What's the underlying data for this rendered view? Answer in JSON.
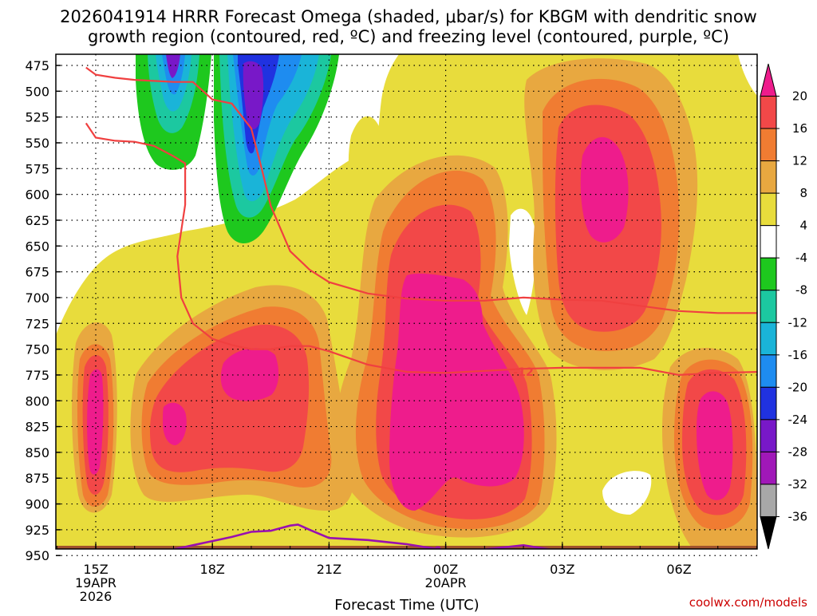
{
  "chart_data": {
    "type": "heatmap",
    "title_line1": "2026041914 HRRR Forecast Omega (shaded, μbar/s) for KBGM with dendritic snow",
    "title_line2": "growth region (contoured, red, ºC) and freezing level (contoured, purple, ºC)",
    "xlabel": "Forecast Time (UTC)",
    "ylabel": "Pressure (mb)",
    "credit": "coolwx.com/models",
    "y_ticks": [
      "475",
      "500",
      "525",
      "550",
      "575",
      "600",
      "625",
      "650",
      "675",
      "700",
      "725",
      "750",
      "775",
      "800",
      "825",
      "850",
      "875",
      "900",
      "925",
      "950"
    ],
    "x_ticks": [
      {
        "label": "15Z",
        "sub1": "19APR",
        "sub2": "2026"
      },
      {
        "label": "18Z",
        "sub1": "",
        "sub2": ""
      },
      {
        "label": "21Z",
        "sub1": "",
        "sub2": ""
      },
      {
        "label": "00Z",
        "sub1": "20APR",
        "sub2": ""
      },
      {
        "label": "03Z",
        "sub1": "",
        "sub2": ""
      },
      {
        "label": "06Z",
        "sub1": "",
        "sub2": ""
      }
    ],
    "colorbar_labels": [
      "20",
      "16",
      "12",
      "8",
      "4",
      "-4",
      "-8",
      "-12",
      "-16",
      "-20",
      "-24",
      "-28",
      "-32",
      "-36"
    ],
    "colorbar_colors": [
      "#ee1c8c",
      "#f24848",
      "#f07c32",
      "#e8a840",
      "#e8dc3c",
      "#ffffff",
      "#1ec81e",
      "#1cc8a0",
      "#1ab4d8",
      "#1e8cf0",
      "#2032e0",
      "#7818c8",
      "#a018b8",
      "#a8a8a8",
      "#000000"
    ],
    "contour_labels": {
      "dendritic_warm": "-12",
      "dendritic_cold": "-18",
      "freezing": "0"
    },
    "series": [
      {
        "name": "Dendritic growth region upper (-18 ºC)",
        "color": "#f04040",
        "points": [
          [
            14.75,
            477
          ],
          [
            15,
            484
          ],
          [
            15.5,
            487
          ],
          [
            16,
            489
          ],
          [
            16.5,
            490
          ],
          [
            17,
            491
          ],
          [
            17.5,
            491
          ],
          [
            18,
            508
          ],
          [
            18.5,
            512
          ],
          [
            19,
            536
          ],
          [
            19.3,
            580
          ],
          [
            19.5,
            611
          ],
          [
            20,
            655
          ],
          [
            20.5,
            673
          ],
          [
            21,
            685
          ],
          [
            22,
            696
          ],
          [
            23,
            701
          ],
          [
            24,
            703
          ],
          [
            25,
            703
          ],
          [
            26,
            700
          ],
          [
            27,
            702
          ],
          [
            28,
            703
          ],
          [
            29,
            708
          ],
          [
            30,
            713
          ],
          [
            31,
            715
          ],
          [
            32,
            715
          ]
        ]
      },
      {
        "name": "Dendritic growth region lower (-12 ºC)",
        "color": "#f04040",
        "points": [
          [
            14.75,
            531
          ],
          [
            15,
            545
          ],
          [
            15.5,
            548
          ],
          [
            16,
            549
          ],
          [
            16.5,
            553
          ],
          [
            17,
            563
          ],
          [
            17.3,
            570
          ],
          [
            17.3,
            610
          ],
          [
            17.1,
            660
          ],
          [
            17.2,
            700
          ],
          [
            17.5,
            725
          ],
          [
            18,
            740
          ],
          [
            18.5,
            746
          ],
          [
            19,
            750
          ],
          [
            19.5,
            750
          ],
          [
            20,
            747
          ],
          [
            20.5,
            747
          ],
          [
            21,
            752
          ],
          [
            22,
            765
          ],
          [
            23,
            772
          ],
          [
            24,
            773
          ],
          [
            25,
            771
          ],
          [
            26,
            769
          ],
          [
            27,
            768
          ],
          [
            28,
            768
          ],
          [
            29,
            768
          ],
          [
            30,
            775
          ],
          [
            31,
            773
          ],
          [
            32,
            772
          ]
        ]
      },
      {
        "name": "Freezing level (0 ºC)",
        "color": "#9910b0",
        "points": [
          [
            15,
            955
          ],
          [
            15.5,
            951
          ],
          [
            16,
            946
          ],
          [
            16.5,
            945
          ],
          [
            17,
            944
          ],
          [
            17.5,
            940
          ],
          [
            18,
            936
          ],
          [
            18.5,
            932
          ],
          [
            19,
            927
          ],
          [
            19.5,
            926
          ],
          [
            20,
            921
          ],
          [
            20.2,
            920
          ],
          [
            20.5,
            925
          ],
          [
            21,
            933
          ],
          [
            22,
            935
          ],
          [
            23,
            939
          ],
          [
            24,
            945
          ],
          [
            25,
            944
          ],
          [
            26,
            940
          ],
          [
            27,
            946
          ],
          [
            28,
            949
          ],
          [
            29,
            949
          ],
          [
            30,
            950
          ],
          [
            31,
            950
          ],
          [
            31.5,
            955
          ]
        ]
      }
    ]
  }
}
